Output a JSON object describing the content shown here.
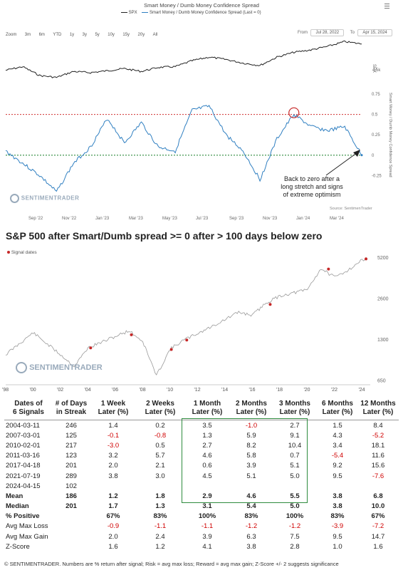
{
  "top_chart": {
    "title": "Smart Money / Dumb Money Confidence Spread",
    "legend": [
      {
        "label": "SPX",
        "color": "#222222"
      },
      {
        "label": "Smart Money / Dumb Money Confidence Spread (Last = 0)",
        "color": "#2f7fc1"
      }
    ],
    "zoom_label": "Zoom",
    "zoom_buttons": [
      "3m",
      "6m",
      "YTD",
      "1y",
      "3y",
      "5y",
      "10y",
      "15y",
      "20y",
      "All"
    ],
    "from_label": "From",
    "from_date": "Jul 28, 2022",
    "to_label": "To",
    "to_date": "Apr 15, 2024",
    "x_labels": [
      "Sep '22",
      "Nov '22",
      "Jan '23",
      "Mar '23",
      "May '23",
      "Jul '23",
      "Sep '23",
      "Nov '23",
      "Jan '24",
      "Mar '24"
    ],
    "spx_axis_label": "4.5k",
    "spx_axis_title": "SPX",
    "spread_ticks": [
      "0.75",
      "0.5",
      "0.25",
      "0",
      "-0.25"
    ],
    "spread_axis_title": "Smart Money / Dumb Money Confidence Spread",
    "upper_threshold": 0.5,
    "lower_threshold": 0,
    "annotation": [
      "Back to zero after a",
      "long stretch and signs",
      "of extreme optimism"
    ],
    "watermark": "SENTIMENTRADER",
    "source": "Source: SentimenTrader"
  },
  "chart_data": [
    {
      "type": "line",
      "title": "Smart Money / Dumb Money Confidence Spread",
      "x": [
        "Jul '22",
        "Aug '22",
        "Sep '22",
        "Oct '22",
        "Nov '22",
        "Dec '22",
        "Jan '23",
        "Feb '23",
        "Mar '23",
        "Apr '23",
        "May '23",
        "Jun '23",
        "Jul '23",
        "Aug '23",
        "Sep '23",
        "Oct '23",
        "Nov '23",
        "Dec '23",
        "Jan '24",
        "Feb '24",
        "Mar '24",
        "Apr '24"
      ],
      "series": [
        {
          "name": "SPX",
          "values": [
            4000,
            4150,
            3780,
            3700,
            3950,
            3900,
            3980,
            4070,
            3950,
            4120,
            4150,
            4400,
            4550,
            4450,
            4300,
            4200,
            4550,
            4750,
            4850,
            5000,
            5200,
            5100
          ]
        },
        {
          "name": "Smart Money / Dumb Money Confidence Spread (Last = 0)",
          "values": [
            0.05,
            -0.1,
            -0.25,
            -0.45,
            -0.1,
            0.1,
            0.45,
            0.15,
            0.4,
            0.1,
            0.05,
            0.55,
            0.6,
            0.25,
            0.05,
            -0.3,
            0.2,
            0.5,
            0.35,
            0.3,
            0.35,
            0.0
          ]
        }
      ],
      "ylim": [
        -0.5,
        0.75
      ]
    },
    {
      "type": "line",
      "title": "S&P 500 after Smart/Dumb spread >= 0 after > 100 days below zero",
      "legend": "Signal dates",
      "x": [
        1998,
        2000,
        2002,
        2003,
        2004,
        2007,
        2008,
        2009,
        2010,
        2011,
        2013,
        2015,
        2016,
        2017,
        2018,
        2020,
        2021,
        2022,
        2023,
        2024.3
      ],
      "series": [
        {
          "name": "S&P 500",
          "values": [
            1000,
            1450,
            1000,
            820,
            1120,
            1500,
            1250,
            700,
            1100,
            1280,
            1600,
            2050,
            1950,
            2400,
            2700,
            3000,
            4300,
            3700,
            4200,
            5200
          ]
        },
        {
          "name": "Signal dates",
          "points": [
            [
              "2004-03-11",
              1120
            ],
            [
              "2007-03-01",
              1400
            ],
            [
              "2010-02-01",
              1090
            ],
            [
              "2011-03-16",
              1280
            ],
            [
              "2017-04-18",
              2340
            ],
            [
              "2021-07-19",
              4260
            ],
            [
              "2024-04-15",
              5060
            ]
          ]
        }
      ],
      "y_ticks": [
        650,
        1300,
        2600,
        5200
      ],
      "x_ticks": [
        "'98",
        "'00",
        "'02",
        "'04",
        "'06",
        "'08",
        "'10",
        "'12",
        "'14",
        "'16",
        "'18",
        "'20",
        "'22",
        "'24"
      ],
      "y_scale": "log"
    }
  ],
  "table": {
    "headers": [
      "Dates of\n6 Signals",
      "# of Days\nin Streak",
      "1 Week\nLater (%)",
      "2 Weeks\nLater (%)",
      "1 Month\nLater (%)",
      "2 Months\nLater (%)",
      "3 Months\nLater (%)",
      "6 Months\nLater (%)",
      "12 Months\nLater (%)"
    ],
    "rows": [
      [
        "2004-03-11",
        "246",
        "1.4",
        "0.2",
        "3.5",
        "-1.0",
        "2.7",
        "1.5",
        "8.4"
      ],
      [
        "2007-03-01",
        "125",
        "-0.1",
        "-0.8",
        "1.3",
        "5.9",
        "9.1",
        "4.3",
        "-5.2"
      ],
      [
        "2010-02-01",
        "217",
        "-3.0",
        "0.5",
        "2.7",
        "8.2",
        "10.4",
        "3.4",
        "18.1"
      ],
      [
        "2011-03-16",
        "123",
        "3.2",
        "5.7",
        "4.6",
        "5.8",
        "0.7",
        "-5.4",
        "11.6"
      ],
      [
        "2017-04-18",
        "201",
        "2.0",
        "2.1",
        "0.6",
        "3.9",
        "5.1",
        "9.2",
        "15.6"
      ],
      [
        "2021-07-19",
        "289",
        "3.8",
        "3.0",
        "4.5",
        "5.1",
        "5.0",
        "9.5",
        "-7.6"
      ],
      [
        "2024-04-15",
        "102",
        "",
        "",
        "",
        "",
        "",
        "",
        ""
      ]
    ],
    "summary": [
      {
        "label": "Mean",
        "values": [
          "186",
          "1.2",
          "1.8",
          "2.9",
          "4.6",
          "5.5",
          "3.8",
          "6.8"
        ],
        "bold": true
      },
      {
        "label": "Median",
        "values": [
          "201",
          "1.7",
          "1.3",
          "3.1",
          "5.4",
          "5.0",
          "3.8",
          "10.0"
        ],
        "bold": true
      },
      {
        "label": "% Positive",
        "values": [
          "",
          "67%",
          "83%",
          "100%",
          "83%",
          "100%",
          "83%",
          "67%"
        ],
        "bold": true
      },
      {
        "label": "Avg Max Loss",
        "values": [
          "",
          "-0.9",
          "-1.1",
          "-1.1",
          "-1.2",
          "-1.2",
          "-3.9",
          "-7.2"
        ],
        "bold": false
      },
      {
        "label": "Avg Max Gain",
        "values": [
          "",
          "2.0",
          "2.4",
          "3.9",
          "6.3",
          "7.5",
          "9.5",
          "14.7"
        ],
        "bold": false
      },
      {
        "label": "Z-Score",
        "values": [
          "",
          "1.6",
          "1.2",
          "4.1",
          "3.8",
          "2.8",
          "1.0",
          "1.6"
        ],
        "bold": false
      }
    ],
    "highlight_color": "#2e8b3e",
    "zscore_highlight_bg": "#e6f4df",
    "negative_color": "#d00000"
  },
  "footer": "© SENTIMENTRADER. Numbers are % return after signal; Risk = avg max loss; Reward = avg max gain; Z-Score +/- 2 suggests significance"
}
